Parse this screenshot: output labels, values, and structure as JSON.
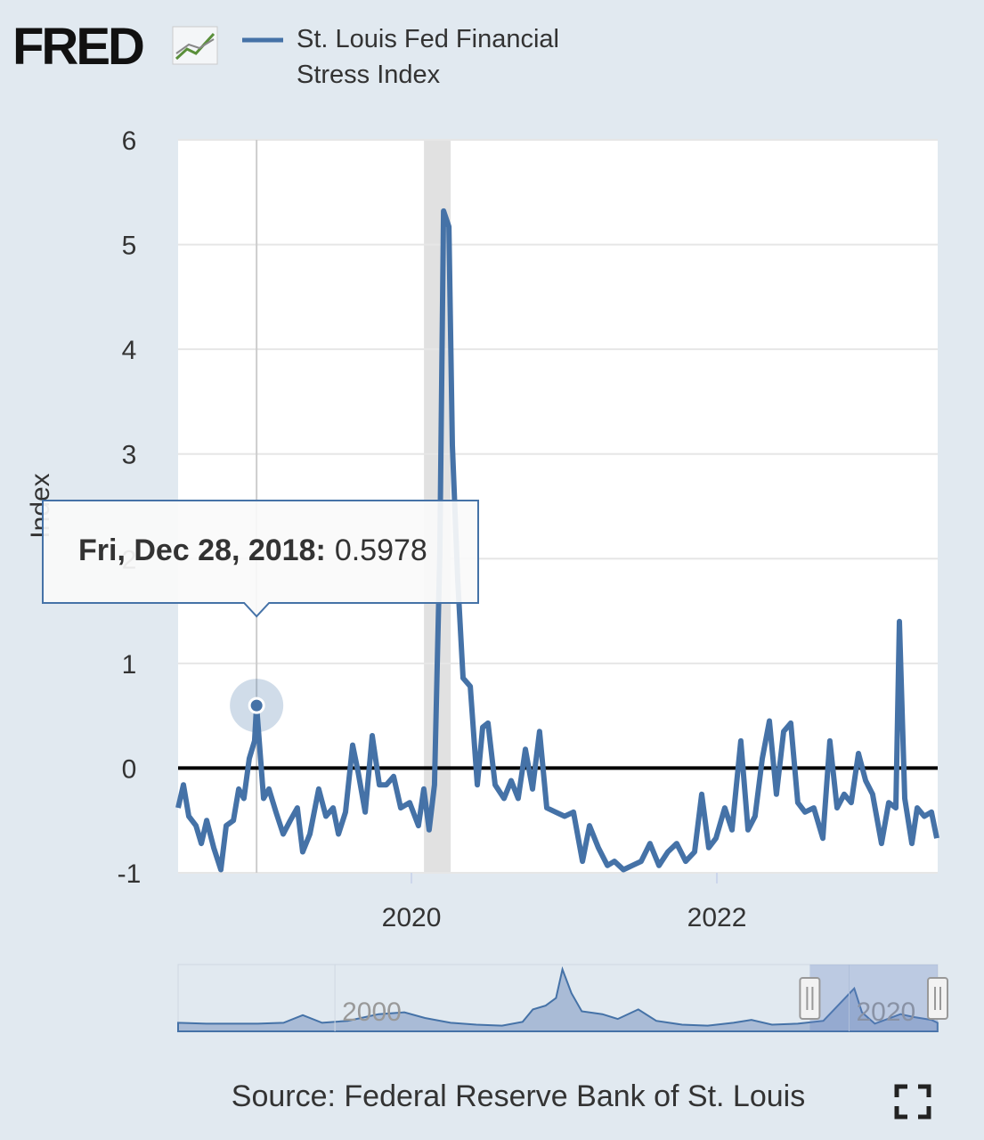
{
  "branding": {
    "logo": "FRED"
  },
  "chart_data": {
    "type": "line",
    "series": [
      {
        "name": "St. Louis Fed Financial Stress Index",
        "color": "#4572a7",
        "x": [
          2018.472,
          2018.507,
          2018.542,
          2018.589,
          2018.624,
          2018.659,
          2018.705,
          2018.752,
          2018.787,
          2018.834,
          2018.869,
          2018.903,
          2018.938,
          2018.973,
          2018.986,
          2019.032,
          2019.067,
          2019.113,
          2019.16,
          2019.207,
          2019.253,
          2019.288,
          2019.335,
          2019.393,
          2019.44,
          2019.487,
          2019.522,
          2019.568,
          2019.615,
          2019.65,
          2019.697,
          2019.743,
          2019.79,
          2019.836,
          2019.883,
          2019.93,
          2019.988,
          2020.046,
          2020.081,
          2020.116,
          2020.151,
          2020.186,
          2020.21,
          2020.245,
          2020.268,
          2020.303,
          2020.338,
          2020.385,
          2020.431,
          2020.466,
          2020.501,
          2020.548,
          2020.606,
          2020.653,
          2020.699,
          2020.746,
          2020.793,
          2020.839,
          2020.886,
          2020.944,
          2021.003,
          2021.061,
          2021.12,
          2021.166,
          2021.224,
          2021.283,
          2021.329,
          2021.388,
          2021.446,
          2021.504,
          2021.562,
          2021.621,
          2021.679,
          2021.737,
          2021.796,
          2021.854,
          2021.901,
          2021.947,
          2021.994,
          2022.052,
          2022.099,
          2022.157,
          2022.204,
          2022.25,
          2022.297,
          2022.344,
          2022.39,
          2022.437,
          2022.484,
          2022.53,
          2022.577,
          2022.635,
          2022.694,
          2022.74,
          2022.787,
          2022.834,
          2022.88,
          2022.927,
          2022.974,
          2023.02,
          2023.078,
          2023.125,
          2023.172,
          2023.195,
          2023.23,
          2023.277,
          2023.312,
          2023.358,
          2023.405,
          2023.44
        ],
        "values": [
          -0.38,
          -0.16,
          -0.46,
          -0.55,
          -0.72,
          -0.5,
          -0.76,
          -0.97,
          -0.55,
          -0.5,
          -0.2,
          -0.29,
          0.09,
          0.26,
          0.5978,
          -0.29,
          -0.2,
          -0.42,
          -0.63,
          -0.5,
          -0.38,
          -0.8,
          -0.63,
          -0.2,
          -0.46,
          -0.38,
          -0.63,
          -0.42,
          0.22,
          -0.03,
          -0.42,
          0.31,
          -0.16,
          -0.16,
          -0.08,
          -0.38,
          -0.33,
          -0.55,
          -0.2,
          -0.59,
          -0.16,
          2.05,
          5.32,
          5.17,
          3.08,
          1.8,
          0.86,
          0.78,
          -0.16,
          0.39,
          0.43,
          -0.16,
          -0.29,
          -0.12,
          -0.29,
          0.18,
          -0.2,
          0.35,
          -0.38,
          -0.42,
          -0.46,
          -0.42,
          -0.89,
          -0.55,
          -0.76,
          -0.93,
          -0.89,
          -0.97,
          -0.93,
          -0.89,
          -0.72,
          -0.93,
          -0.8,
          -0.72,
          -0.89,
          -0.8,
          -0.25,
          -0.76,
          -0.67,
          -0.38,
          -0.59,
          0.26,
          -0.59,
          -0.46,
          0.09,
          0.45,
          -0.25,
          0.35,
          0.43,
          -0.33,
          -0.42,
          -0.38,
          -0.67,
          0.26,
          -0.38,
          -0.25,
          -0.33,
          0.14,
          -0.12,
          -0.25,
          -0.72,
          -0.33,
          -0.38,
          1.4,
          -0.29,
          -0.72,
          -0.38,
          -0.46,
          -0.42,
          -0.67
        ]
      }
    ],
    "y_label": "Index",
    "xlim": [
      2018.472,
      2023.446
    ],
    "xticks": [
      2020,
      2022
    ],
    "ylim": [
      -1,
      6
    ],
    "yticks": [
      -1,
      0,
      1,
      2,
      3,
      4,
      5,
      6
    ],
    "grid": true,
    "shaded": [
      [
        2020.082,
        2020.257
      ]
    ],
    "tooltip": {
      "label": "Fri, Dec 28, 2018:",
      "x": 2018.986,
      "value": 0.5978
    },
    "navigator": {
      "x": [
        1993.9,
        1995,
        1996,
        1997,
        1998,
        1998.75,
        1999.5,
        2000.5,
        2001.7,
        2002.7,
        2003.5,
        2004.5,
        2005.5,
        2006.5,
        2007.3,
        2007.7,
        2008.2,
        2008.6,
        2008.85,
        2009.2,
        2009.6,
        2010.4,
        2011,
        2011.8,
        2012.5,
        2013.5,
        2014.5,
        2015.5,
        2016.2,
        2017,
        2018,
        2019,
        2020.2,
        2020.5,
        2021,
        2022,
        2022.5,
        2023.2,
        2023.44
      ],
      "values": [
        -0.6,
        -0.7,
        -0.7,
        -0.7,
        -0.6,
        0.2,
        -0.6,
        -0.4,
        0.3,
        0.5,
        -0.1,
        -0.6,
        -0.8,
        -0.9,
        -0.5,
        0.8,
        1.2,
        2.0,
        5.0,
        2.5,
        0.6,
        0.3,
        -0.2,
        0.8,
        -0.4,
        -0.8,
        -0.9,
        -0.6,
        -0.3,
        -0.8,
        -0.7,
        -0.4,
        3.0,
        0.5,
        -0.7,
        0.3,
        0,
        -0.3,
        -0.6
      ],
      "xlim": [
        1993.9,
        2023.446
      ],
      "ylim": [
        -1.5,
        5.5
      ],
      "xticks": [
        2000,
        2020
      ]
    },
    "source": "Source: Federal Reserve Bank of St. Louis"
  }
}
